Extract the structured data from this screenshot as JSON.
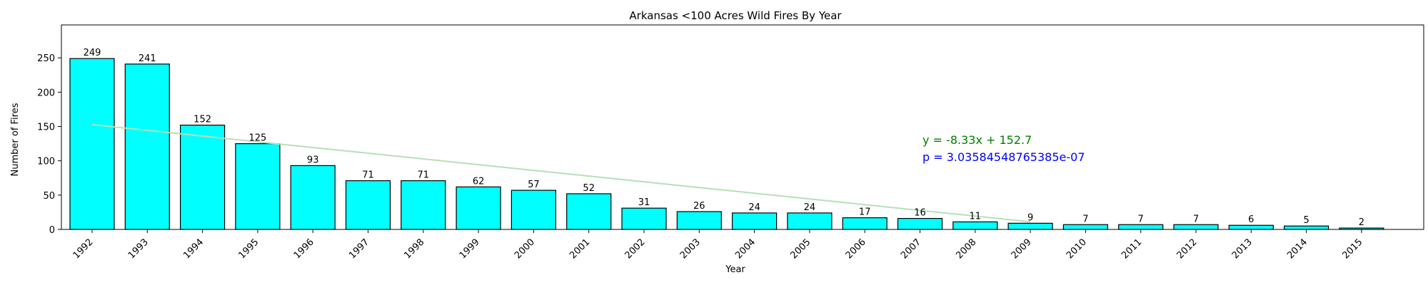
{
  "chart_data": {
    "type": "bar",
    "title": "Arkansas <100 Acres Wild Fires By Year",
    "xlabel": "Year",
    "ylabel": "Number of Fires",
    "categories": [
      "1992",
      "1993",
      "1994",
      "1995",
      "1996",
      "1997",
      "1998",
      "1999",
      "2000",
      "2001",
      "2002",
      "2003",
      "2004",
      "2005",
      "2006",
      "2007",
      "2008",
      "2009",
      "2010",
      "2011",
      "2012",
      "2013",
      "2014",
      "2015"
    ],
    "values": [
      249,
      241,
      152,
      125,
      93,
      71,
      71,
      62,
      57,
      52,
      31,
      26,
      24,
      24,
      17,
      16,
      11,
      9,
      7,
      7,
      7,
      6,
      5,
      2
    ],
    "ylim": [
      0,
      298
    ],
    "yticks": [
      0,
      50,
      100,
      150,
      200,
      250
    ],
    "grid": false,
    "bar_color": "#00ffff",
    "bar_edge_color": "#000000",
    "trendline": {
      "slope": -8.33,
      "intercept": 152.7,
      "color": "#b7e0b7",
      "x_start_index": 0,
      "x_end_index": 17
    },
    "annotations": [
      {
        "text": "y = -8.33x + 152.7",
        "color": "#008000"
      },
      {
        "text": "p = 3.03584548765385e-07",
        "color": "#0000ff"
      }
    ]
  }
}
